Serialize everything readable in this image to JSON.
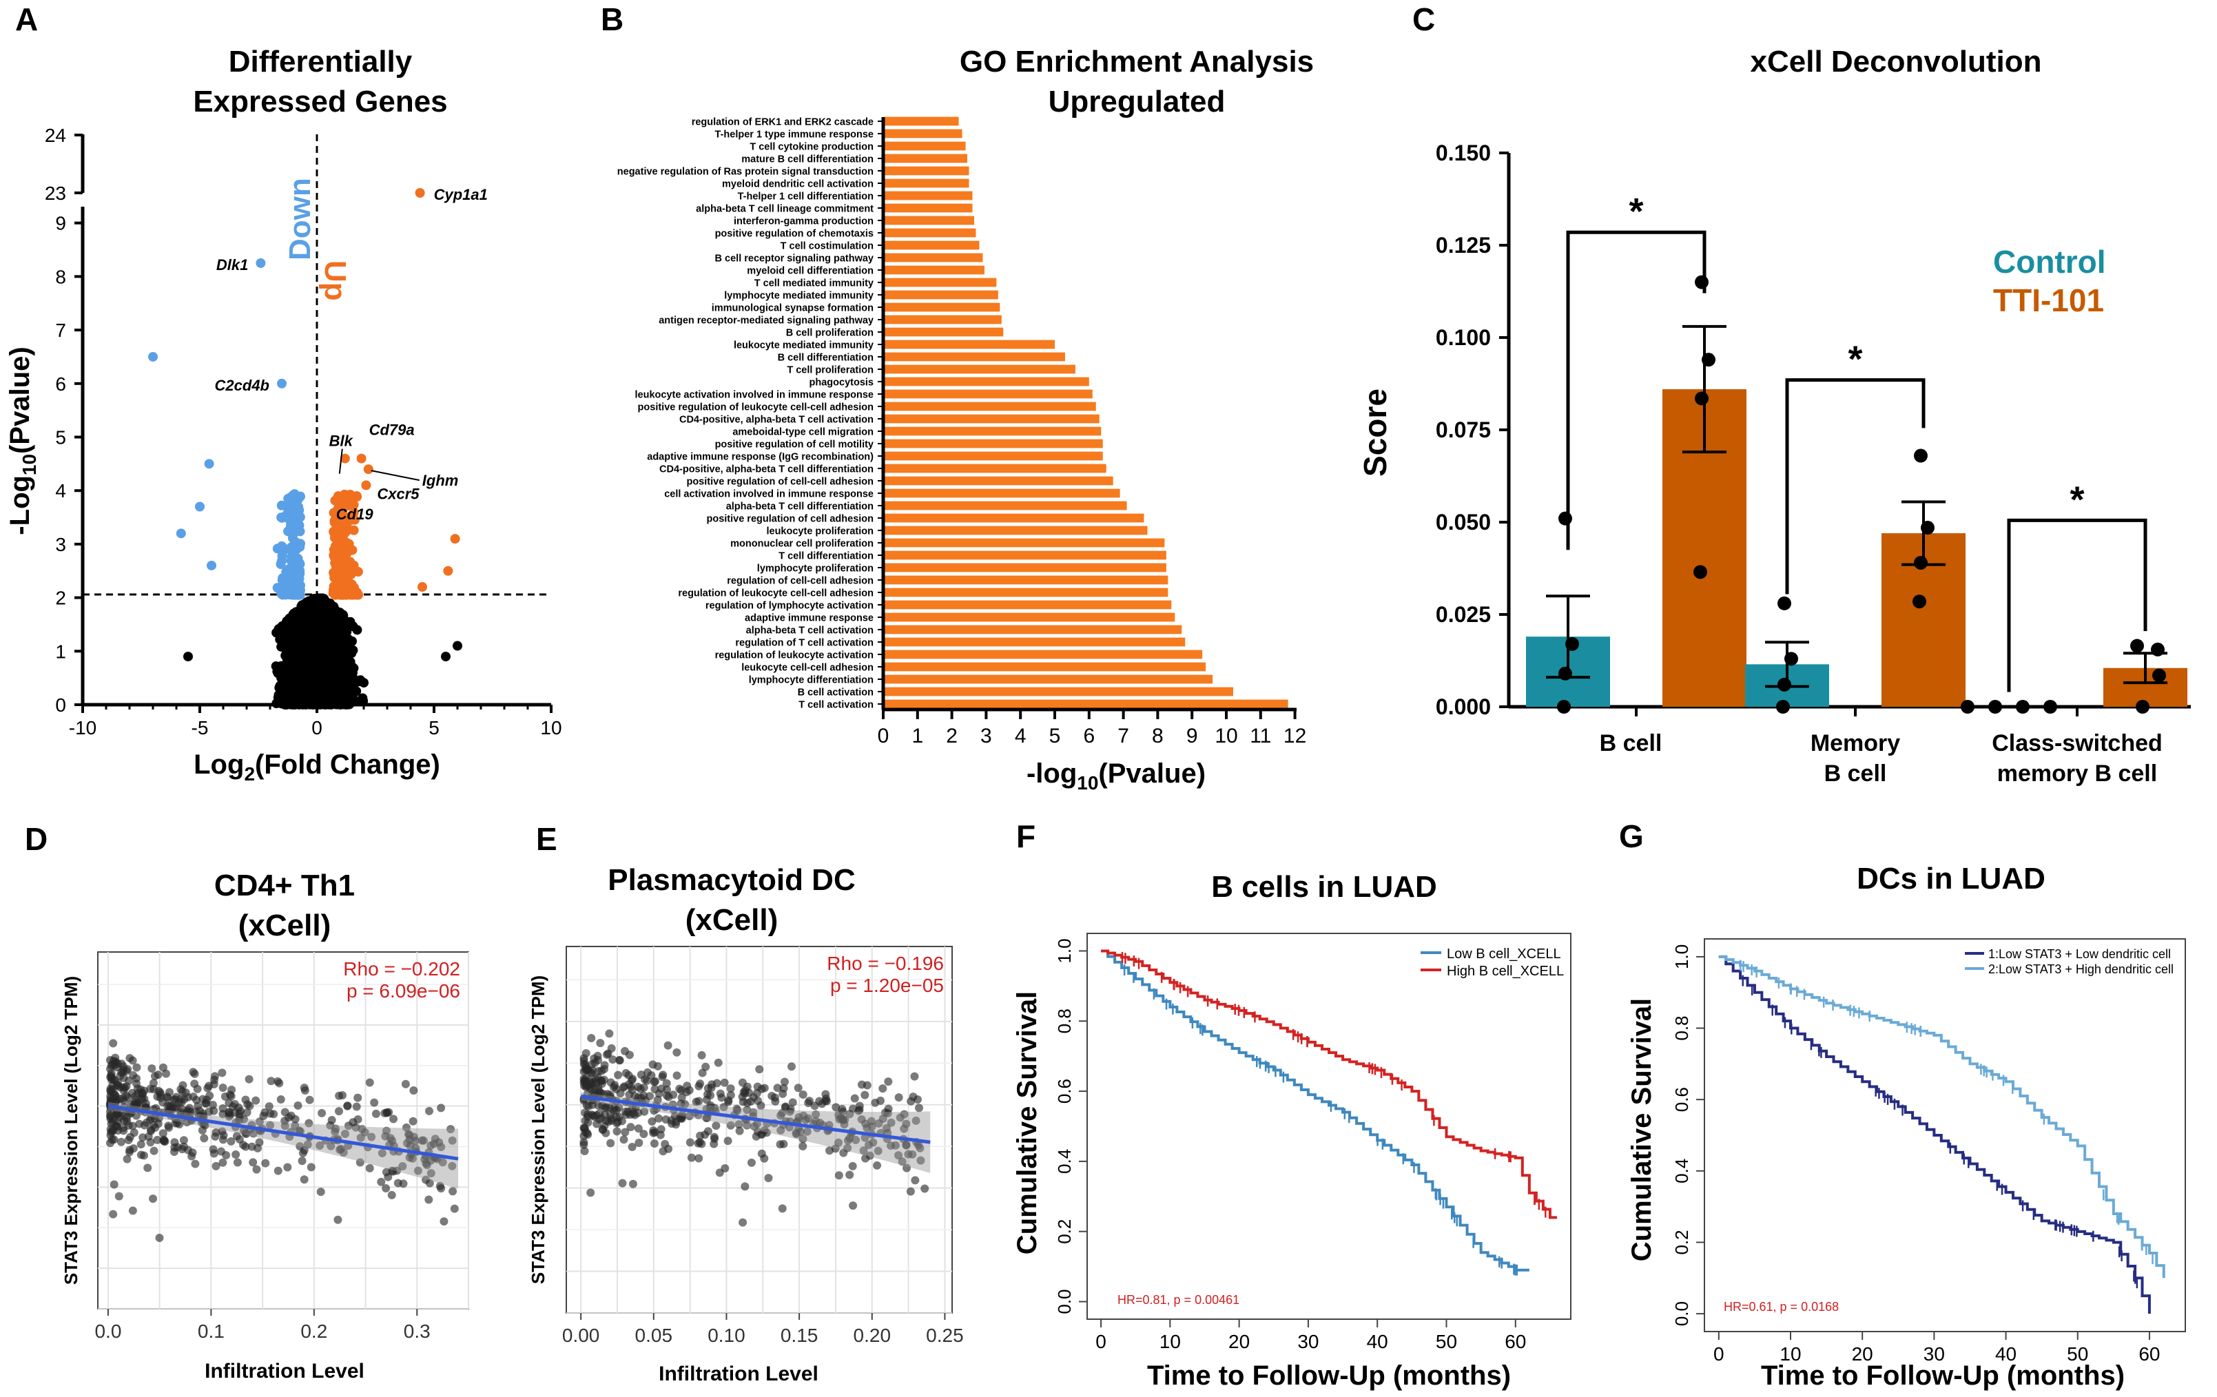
{
  "panels": {
    "A": {
      "letter": "A",
      "title1": "Differentially",
      "title2": "Expressed Genes",
      "xlabel_main": "Log",
      "xlabel_sub": "2",
      "xlabel_tail": "(Fold Change)",
      "ylabel_main": "-Log",
      "ylabel_sub": "10",
      "ylabel_tail": "(Pvalue)",
      "down_label": "Down",
      "up_label": "Up"
    },
    "B": {
      "letter": "B",
      "title1": "GO Enrichment Analysis",
      "title2": "Upregulated",
      "xlabel_main": "-log",
      "xlabel_sub": "10",
      "xlabel_tail": "(Pvalue)"
    },
    "C": {
      "letter": "C",
      "title": "xCell Deconvolution",
      "ylabel": "Score",
      "legend_control": "Control",
      "legend_tti": "TTI-101",
      "star": "*"
    },
    "D": {
      "letter": "D",
      "title1": "CD4+ Th1",
      "title2": "(xCell)",
      "xlabel": "Infiltration Level",
      "ylabel": "STAT3 Expression Level (Log2 TPM)",
      "rho": "Rho = −0.202",
      "pval": "p = 6.09e−06"
    },
    "E": {
      "letter": "E",
      "title1": "Plasmacytoid DC",
      "title2": "(xCell)",
      "xlabel": "Infiltration Level",
      "ylabel": "STAT3 Expression Level (Log2 TPM)",
      "rho": "Rho = −0.196",
      "pval": "p = 1.20e−05"
    },
    "F": {
      "letter": "F",
      "title": "B cells in LUAD",
      "xlabel": "Time to Follow-Up (months)",
      "ylabel": "Cumulative Survival",
      "legend_low": "Low B cell_XCELL",
      "legend_high": "High B cell_XCELL",
      "hr": "HR=0.81, p = 0.00461"
    },
    "G": {
      "letter": "G",
      "title": "DCs in LUAD",
      "xlabel": "Time to Follow-Up (months)",
      "ylabel": "Cumulative Survival",
      "legend_low": "1:Low STAT3 + Low dendritic cell",
      "legend_high": "2:Low STAT3 + High dendritic cell",
      "hr": "HR=0.61, p = 0.0168"
    }
  },
  "colors": {
    "down": "#5aa0e6",
    "up": "#f07020",
    "ns": "#000000",
    "go_bar": "#f57b1e",
    "control": "#1a8ea0",
    "tti": "#c55a00",
    "low_b": "#3e88c0",
    "high_b": "#d42222",
    "low_dc": "#262d82",
    "high_dc": "#6aaad6",
    "stat_red": "#d02020",
    "fit": "#3358d8"
  },
  "chart_data": [
    {
      "panel": "A",
      "type": "scatter",
      "title": "Differentially Expressed Genes",
      "xlabel": "Log2(Fold Change)",
      "ylabel": "-Log10(Pvalue)",
      "xlim": [
        -10,
        10
      ],
      "ylim": [
        0,
        24
      ],
      "x_ticks": [
        -10,
        -5,
        0,
        5,
        10
      ],
      "y_ticks": [
        0,
        1,
        2,
        3,
        4,
        5,
        6,
        7,
        8,
        9,
        23,
        24
      ],
      "thresholds": {
        "pvalue_line": 2,
        "fold_change_line": 0
      },
      "labeled_genes": [
        {
          "gene": "Cyp1a1",
          "x": 4.4,
          "y": 23.0,
          "dir": "up"
        },
        {
          "gene": "Dlk1",
          "x": -2.4,
          "y": 8.25,
          "dir": "down"
        },
        {
          "gene": "C2cd4b",
          "x": -1.5,
          "y": 6.0,
          "dir": "down"
        },
        {
          "gene": "Blk",
          "x": 1.2,
          "y": 4.6,
          "dir": "up"
        },
        {
          "gene": "Cd79a",
          "x": 1.9,
          "y": 4.6,
          "dir": "up"
        },
        {
          "gene": "Ighm",
          "x": 2.2,
          "y": 4.4,
          "dir": "up"
        },
        {
          "gene": "Cxcr5",
          "x": 2.1,
          "y": 4.1,
          "dir": "up"
        },
        {
          "gene": "Cd19",
          "x": 1.7,
          "y": 3.9,
          "dir": "up"
        }
      ],
      "extra_points": [
        {
          "x": -7.0,
          "y": 6.5,
          "dir": "down"
        },
        {
          "x": -4.6,
          "y": 4.5,
          "dir": "down"
        },
        {
          "x": -5.0,
          "y": 3.7,
          "dir": "down"
        },
        {
          "x": -5.8,
          "y": 3.2,
          "dir": "down"
        },
        {
          "x": -4.5,
          "y": 2.6,
          "dir": "down"
        },
        {
          "x": 5.9,
          "y": 3.1,
          "dir": "up"
        },
        {
          "x": 5.6,
          "y": 2.5,
          "dir": "up"
        },
        {
          "x": 4.5,
          "y": 2.2,
          "dir": "up"
        },
        {
          "x": 6.0,
          "y": 1.1,
          "dir": "ns"
        },
        {
          "x": 5.5,
          "y": 0.9,
          "dir": "ns"
        },
        {
          "x": -5.5,
          "y": 0.9,
          "dir": "ns"
        }
      ]
    },
    {
      "panel": "B",
      "type": "bar",
      "title": "GO Enrichment Analysis Upregulated",
      "xlabel": "-log10(Pvalue)",
      "xlim": [
        0,
        12
      ],
      "x_ticks": [
        0,
        1,
        2,
        3,
        4,
        5,
        6,
        7,
        8,
        9,
        10,
        11,
        12
      ],
      "categories": [
        "regulation of ERK1 and ERK2 cascade",
        "T-helper 1 type immune response",
        "T cell cytokine production",
        "mature B cell differentiation",
        "negative regulation of Ras protein signal transduction",
        "myeloid dendritic cell activation",
        "T-helper 1 cell differentiation",
        "alpha-beta T cell lineage commitment",
        "interferon-gamma production",
        "positive regulation of chemotaxis",
        "T cell costimulation",
        "B cell receptor signaling pathway",
        "myeloid cell differentiation",
        "T cell mediated immunity",
        "lymphocyte mediated immunity",
        "immunological synapse formation",
        "antigen receptor-mediated signaling pathway",
        "B cell proliferation",
        "leukocyte mediated immunity",
        "B cell differentiation",
        "T cell proliferation",
        "phagocytosis",
        "leukocyte activation involved in immune response",
        "positive regulation of leukocyte cell-cell adhesion",
        "CD4-positive, alpha-beta T cell activation",
        "ameboidal-type cell migration",
        "positive regulation of cell motility",
        "adaptive immune response (IgG recombination)",
        "CD4-positive, alpha-beta T cell differentiation",
        "positive regulation of cell-cell adhesion",
        "cell activation involved in immune response",
        "alpha-beta T cell differentiation",
        "positive regulation of cell adhesion",
        "leukocyte proliferation",
        "mononuclear cell proliferation",
        "T cell differentiation",
        "lymphocyte proliferation",
        "regulation of cell-cell adhesion",
        "regulation of leukocyte cell-cell adhesion",
        "regulation of lymphocyte activation",
        "adaptive immune response",
        "alpha-beta T cell activation",
        "regulation of T cell activation",
        "regulation of leukocyte activation",
        "leukocyte cell-cell adhesion",
        "lymphocyte differentiation",
        "B cell activation",
        "T cell activation"
      ],
      "values": [
        2.2,
        2.3,
        2.4,
        2.45,
        2.5,
        2.5,
        2.6,
        2.6,
        2.65,
        2.7,
        2.8,
        2.9,
        2.95,
        3.3,
        3.35,
        3.4,
        3.45,
        3.5,
        5.0,
        5.3,
        5.6,
        6.0,
        6.1,
        6.2,
        6.3,
        6.35,
        6.4,
        6.4,
        6.5,
        6.7,
        6.9,
        7.1,
        7.6,
        7.7,
        8.2,
        8.25,
        8.25,
        8.3,
        8.3,
        8.4,
        8.5,
        8.7,
        8.8,
        9.3,
        9.4,
        9.6,
        10.2,
        11.8
      ]
    },
    {
      "panel": "C",
      "type": "bar",
      "title": "xCell Deconvolution",
      "ylabel": "Score",
      "ylim": [
        0,
        0.15
      ],
      "y_ticks": [
        "0.000",
        "0.025",
        "0.050",
        "0.075",
        "0.100",
        "0.125",
        "0.150"
      ],
      "categories": [
        "B cell",
        "Memory B cell",
        "Class-switched memory B cell"
      ],
      "category_lines": [
        [
          "B cell"
        ],
        [
          "Memory",
          "B cell"
        ],
        [
          "Class-switched",
          "memory B cell"
        ]
      ],
      "series": [
        {
          "name": "Control",
          "values": [
            0.019,
            0.0115,
            0.0
          ],
          "sem": [
            0.011,
            0.006,
            0.0
          ],
          "points": [
            [
              0.051,
              0.017,
              0.009,
              0.0
            ],
            [
              0.028,
              0.013,
              0.006,
              0.0
            ],
            [
              0.0,
              0.0,
              0.0,
              0.0
            ]
          ]
        },
        {
          "name": "TTI-101",
          "values": [
            0.086,
            0.047,
            0.0105
          ],
          "sem": [
            0.017,
            0.0085,
            0.004
          ],
          "points": [
            [
              0.115,
              0.094,
              0.0835,
              0.0365
            ],
            [
              0.068,
              0.0485,
              0.039,
              0.0285
            ],
            [
              0.0165,
              0.0155,
              0.0085,
              0.0
            ]
          ]
        }
      ],
      "significance": [
        "*",
        "*",
        "*"
      ]
    },
    {
      "panel": "D",
      "type": "scatter",
      "title": "CD4+ Th1 (xCell)",
      "xlabel": "Infiltration Level",
      "ylabel": "STAT3 Expression Level (Log2 TPM)",
      "xlim": [
        -0.01,
        0.35
      ],
      "x_ticks": [
        0.0,
        0.1,
        0.2,
        0.3
      ],
      "x_tick_labels": [
        "0.0",
        "0.1",
        "0.2",
        "0.3"
      ],
      "ylim": [
        3.0,
        7.4
      ],
      "y_grid": [
        3.5,
        4.5,
        5.5,
        6.5
      ],
      "n_points": 520,
      "fit": {
        "x0": 0.0,
        "y0": 5.5,
        "x1": 0.34,
        "y1": 4.85
      },
      "stat": {
        "rho": -0.202,
        "p": "6.09e-06"
      }
    },
    {
      "panel": "E",
      "type": "scatter",
      "title": "Plasmacytoid DC (xCell)",
      "xlabel": "Infiltration Level",
      "ylabel": "STAT3 Expression Level (Log2 TPM)",
      "xlim": [
        -0.01,
        0.255
      ],
      "x_ticks": [
        0.0,
        0.05,
        0.1,
        0.15,
        0.2,
        0.25
      ],
      "x_tick_labels": [
        "0.00",
        "0.05",
        "0.10",
        "0.15",
        "0.20",
        "0.25"
      ],
      "ylim": [
        3.0,
        7.4
      ],
      "y_grid": [
        3.5,
        4.5,
        5.5,
        6.5
      ],
      "n_points": 500,
      "fit": {
        "x0": 0.0,
        "y0": 5.6,
        "x1": 0.24,
        "y1": 5.05
      },
      "stat": {
        "rho": -0.196,
        "p": "1.20e-05"
      }
    },
    {
      "panel": "F",
      "type": "line",
      "title": "B cells in LUAD",
      "xlabel": "Time to Follow-Up (months)",
      "ylabel": "Cumulative Survival",
      "xlim": [
        -2,
        68
      ],
      "ylim": [
        -0.05,
        1.05
      ],
      "x_ticks": [
        0,
        10,
        20,
        30,
        40,
        50,
        60
      ],
      "y_ticks": [
        "0.0",
        "0.2",
        "0.4",
        "0.6",
        "0.8",
        "1.0"
      ],
      "series": [
        {
          "name": "Low B cell_XCELL",
          "x": [
            0,
            5,
            10,
            15,
            20,
            25,
            30,
            35,
            40,
            45,
            50,
            55,
            60,
            62
          ],
          "y": [
            1.0,
            0.92,
            0.84,
            0.77,
            0.71,
            0.66,
            0.59,
            0.54,
            0.46,
            0.39,
            0.27,
            0.14,
            0.09,
            0.09
          ]
        },
        {
          "name": "High B cell_XCELL",
          "x": [
            0,
            5,
            10,
            15,
            20,
            25,
            30,
            35,
            40,
            45,
            50,
            55,
            60,
            62,
            65,
            66
          ],
          "y": [
            1.0,
            0.97,
            0.91,
            0.86,
            0.83,
            0.79,
            0.74,
            0.69,
            0.66,
            0.6,
            0.47,
            0.43,
            0.41,
            0.31,
            0.24,
            0.24
          ]
        }
      ],
      "stat": {
        "hr": 0.81,
        "p": "0.00461"
      }
    },
    {
      "panel": "G",
      "type": "line",
      "title": "DCs in LUAD",
      "xlabel": "Time to Follow-Up (months)",
      "ylabel": "Cumulative Survival",
      "xlim": [
        -2,
        65
      ],
      "ylim": [
        -0.05,
        1.05
      ],
      "x_ticks": [
        0,
        10,
        20,
        30,
        40,
        50,
        60
      ],
      "y_ticks": [
        "0.0",
        "0.2",
        "0.4",
        "0.6",
        "0.8",
        "1.0"
      ],
      "series": [
        {
          "name": "1:Low STAT3 + Low dendritic cell",
          "x": [
            0,
            5,
            10,
            15,
            20,
            25,
            30,
            35,
            40,
            45,
            50,
            55,
            58,
            60
          ],
          "y": [
            1.0,
            0.9,
            0.8,
            0.72,
            0.65,
            0.58,
            0.5,
            0.42,
            0.34,
            0.26,
            0.23,
            0.2,
            0.1,
            0.0
          ]
        },
        {
          "name": "2:Low STAT3 + High dendritic cell",
          "x": [
            0,
            5,
            10,
            15,
            20,
            25,
            30,
            35,
            40,
            45,
            50,
            55,
            60,
            62
          ],
          "y": [
            1.0,
            0.96,
            0.91,
            0.87,
            0.84,
            0.81,
            0.78,
            0.7,
            0.65,
            0.55,
            0.47,
            0.28,
            0.17,
            0.1
          ]
        }
      ],
      "stat": {
        "hr": 0.61,
        "p": "0.0168"
      }
    }
  ]
}
